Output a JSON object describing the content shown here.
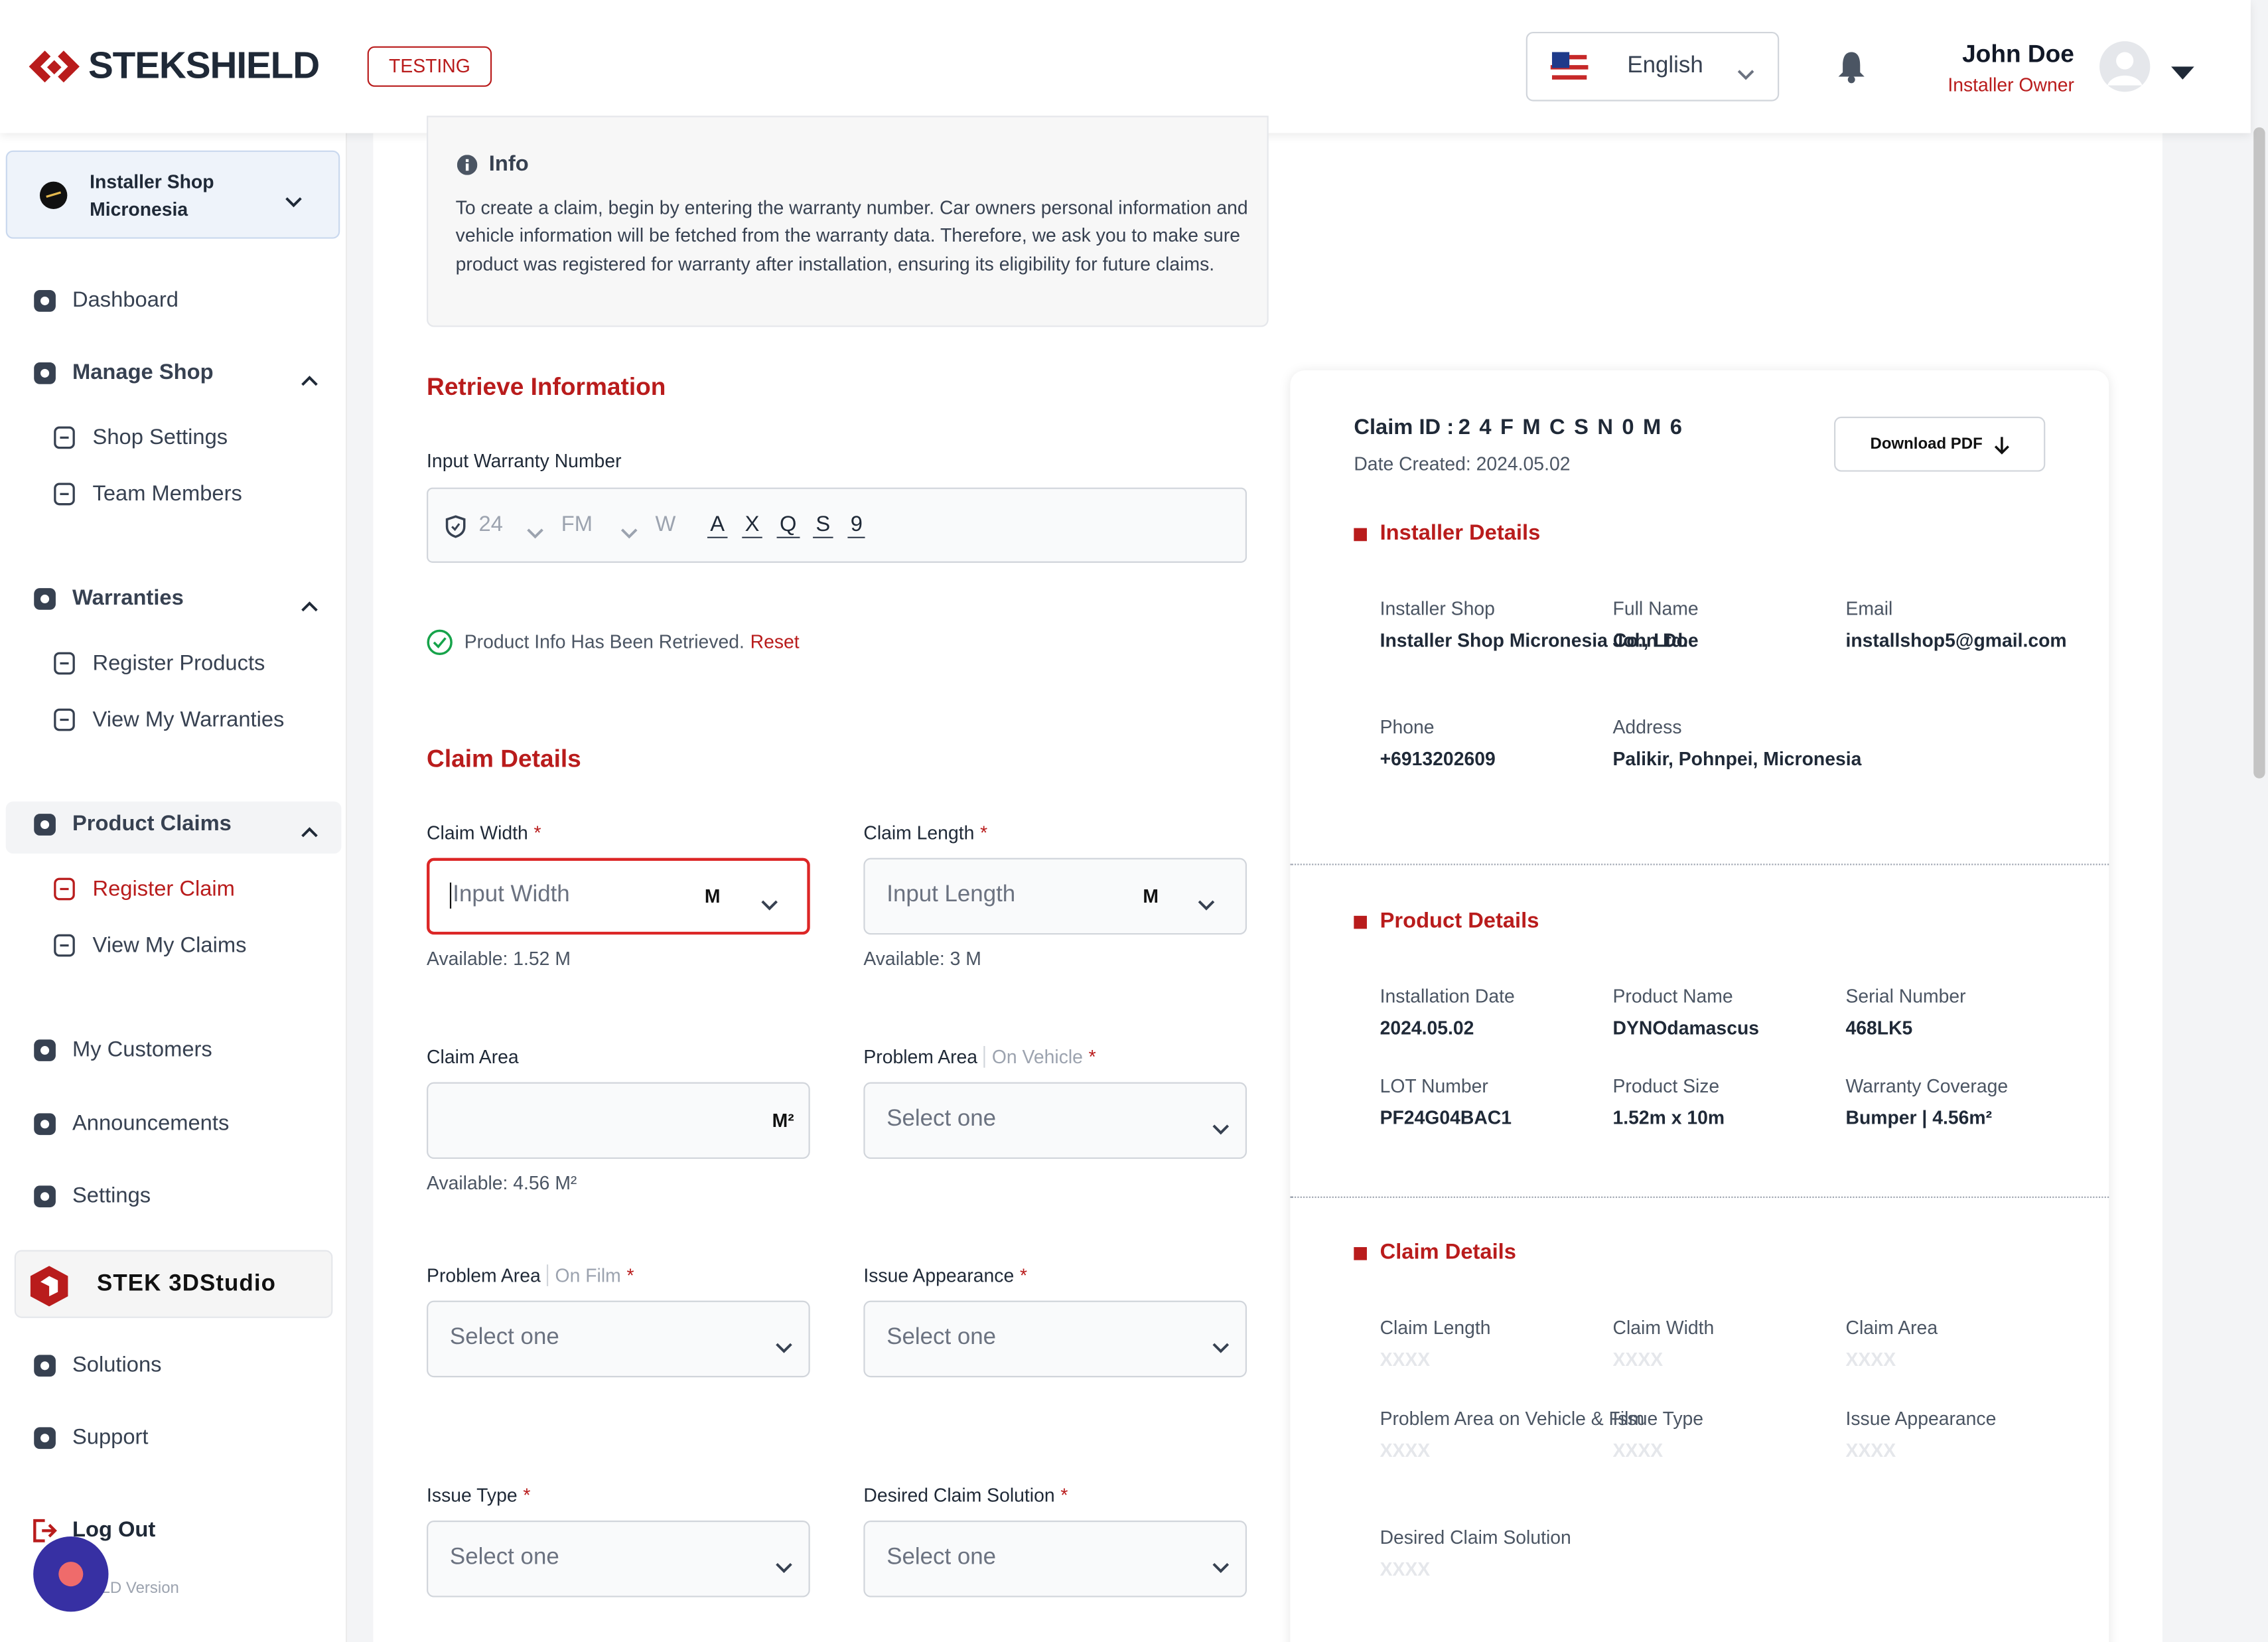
{
  "header": {
    "logo": "STEKSHIELD",
    "environment": "TESTING",
    "language": "English",
    "user_name": "John Doe",
    "user_role": "Installer Owner"
  },
  "sidebar": {
    "shop": "Installer Shop Micronesia",
    "items": [
      "Dashboard",
      "Manage Shop",
      "Shop Settings",
      "Team Members",
      "Warranties",
      "Register Products",
      "View My Warranties",
      "Product Claims",
      "Register Claim",
      "View My Claims",
      "My Customers",
      "Announcements",
      "Settings",
      "Solutions",
      "Support",
      "Log Out"
    ],
    "studio": "STEK 3DStudio",
    "version": "LD Version"
  },
  "info": {
    "title": "Info",
    "text": "To create a claim, begin by entering the warranty number. Car owners personal information and vehicle information will be fetched from the warranty data. Therefore, we ask you to make sure product was registered for warranty after installation, ensuring its eligibility for future claims."
  },
  "retrieve": {
    "title": "Retrieve Information",
    "label": "Input Warranty Number",
    "segments": [
      "24",
      "FM",
      "W",
      "A",
      "X",
      "Q",
      "S",
      "9"
    ],
    "status": "Product Info Has Been Retrieved.",
    "reset": "Reset"
  },
  "claim_form": {
    "title": "Claim Details",
    "fields": [
      {
        "label": "Claim Width",
        "required": "*",
        "placeholder": "Input Width",
        "unit": "M",
        "available": "Available: 1.52 M"
      },
      {
        "label": "Claim Length",
        "required": "*",
        "placeholder": "Input Length",
        "unit": "M",
        "available": "Available: 3 M"
      },
      {
        "label": "Claim Area",
        "unit": "M²",
        "available": "Available: 4.56 M²"
      },
      {
        "label": "Problem Area",
        "qualifier": "On Vehicle",
        "required": "*",
        "placeholder": "Select one"
      },
      {
        "label": "Problem Area",
        "qualifier": "On Film",
        "required": "*",
        "placeholder": "Select one"
      },
      {
        "label": "Issue Appearance",
        "required": "*",
        "placeholder": "Select one"
      },
      {
        "label": "Issue Type",
        "required": "*",
        "placeholder": "Select one"
      },
      {
        "label": "Desired Claim Solution",
        "required": "*",
        "placeholder": "Select one"
      }
    ]
  },
  "summary": {
    "claim_id_label": "Claim ID :",
    "claim_id": "2 4 F M C S N 0 M 6",
    "date": "Date Created: 2024.05.02",
    "download": "Download PDF",
    "sections": [
      {
        "title": "Installer Details",
        "fields": [
          {
            "label": "Installer Shop",
            "value": "Installer Shop Micronesia Co., Ltd."
          },
          {
            "label": "Full Name",
            "value": "John Doe"
          },
          {
            "label": "Email",
            "value": "installshop5@gmail.com"
          },
          {
            "label": "Phone",
            "value": "+6913202609"
          },
          {
            "label": "Address",
            "value": "Palikir, Pohnpei, Micronesia"
          }
        ]
      },
      {
        "title": "Product Details",
        "fields": [
          {
            "label": "Installation Date",
            "value": "2024.05.02"
          },
          {
            "label": "Product Name",
            "value": "DYNOdamascus"
          },
          {
            "label": "Serial Number",
            "value": "468LK5"
          },
          {
            "label": "LOT Number",
            "value": "PF24G04BAC1"
          },
          {
            "label": "Product Size",
            "value": "1.52m x 10m"
          },
          {
            "label": "Warranty Coverage",
            "value": "Bumper | 4.56m²"
          }
        ]
      },
      {
        "title": "Claim Details",
        "fields": [
          {
            "label": "Claim Length",
            "value": "XXXX"
          },
          {
            "label": "Claim Width",
            "value": "XXXX"
          },
          {
            "label": "Claim Area",
            "value": "XXXX"
          },
          {
            "label": "Problem Area on Vehicle & Film",
            "value": "XXXX"
          },
          {
            "label": "Issue Type",
            "value": "XXXX"
          },
          {
            "label": "Issue Appearance",
            "value": "XXXX"
          },
          {
            "label": "Desired Claim Solution",
            "value": "XXXX"
          }
        ]
      }
    ]
  }
}
